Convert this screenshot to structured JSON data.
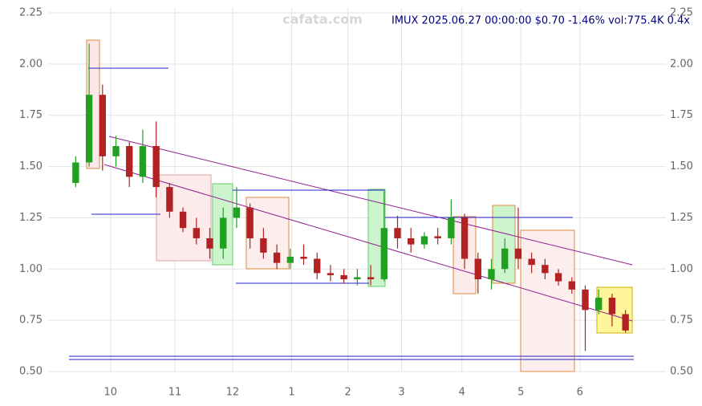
{
  "chart_data": {
    "type": "candlestick",
    "title": "IMUX 2025.06.27 00:00:00 $0.70 -1.46% vol:775.4K 0.4x",
    "watermark": "cafata.com",
    "categories": [
      null,
      null,
      null,
      null,
      null,
      null,
      null,
      null,
      null,
      null,
      null,
      null,
      null,
      null,
      null,
      null,
      null,
      null,
      null,
      null,
      null,
      null,
      null,
      null,
      null,
      null,
      null,
      null,
      null,
      null,
      null,
      null,
      null,
      null,
      null,
      null,
      null,
      null,
      null,
      null,
      null,
      null
    ],
    "open": [
      1.42,
      1.52,
      1.85,
      1.55,
      1.6,
      1.45,
      1.6,
      1.4,
      1.28,
      1.2,
      1.15,
      1.1,
      1.25,
      1.3,
      1.15,
      1.08,
      1.03,
      1.06,
      1.05,
      0.98,
      0.97,
      0.95,
      0.96,
      0.95,
      1.2,
      1.15,
      1.12,
      1.16,
      1.15,
      1.25,
      1.05,
      0.95,
      1.0,
      1.1,
      1.05,
      1.02,
      0.98,
      0.94,
      0.9,
      0.8,
      0.86,
      0.78
    ],
    "high": [
      1.55,
      2.1,
      1.9,
      1.65,
      1.62,
      1.68,
      1.72,
      1.42,
      1.3,
      1.25,
      1.2,
      1.3,
      1.4,
      1.32,
      1.2,
      1.12,
      1.1,
      1.12,
      1.08,
      1.02,
      1.0,
      1.0,
      1.02,
      1.38,
      1.26,
      1.2,
      1.18,
      1.2,
      1.34,
      1.27,
      1.08,
      1.05,
      1.15,
      1.3,
      1.08,
      1.05,
      1.0,
      0.96,
      0.92,
      0.9,
      0.88,
      0.8
    ],
    "low": [
      1.4,
      1.5,
      1.48,
      1.5,
      1.4,
      1.42,
      1.35,
      1.25,
      1.18,
      1.12,
      1.05,
      1.05,
      1.2,
      1.1,
      1.05,
      1.0,
      1.0,
      1.02,
      0.95,
      0.94,
      0.93,
      0.92,
      0.92,
      0.94,
      1.1,
      1.08,
      1.1,
      1.12,
      1.12,
      1.0,
      0.88,
      0.9,
      0.98,
      1.0,
      0.98,
      0.95,
      0.92,
      0.88,
      0.6,
      0.78,
      0.72,
      0.69
    ],
    "close": [
      1.52,
      1.85,
      1.55,
      1.6,
      1.45,
      1.6,
      1.4,
      1.28,
      1.2,
      1.15,
      1.1,
      1.25,
      1.3,
      1.15,
      1.08,
      1.03,
      1.06,
      1.05,
      0.98,
      0.97,
      0.95,
      0.96,
      0.95,
      1.2,
      1.15,
      1.12,
      1.16,
      1.15,
      1.25,
      1.05,
      0.95,
      1.0,
      1.1,
      1.05,
      1.02,
      0.98,
      0.94,
      0.9,
      0.8,
      0.86,
      0.78,
      0.7
    ],
    "up_color": "#22a022",
    "down_color": "#b22222",
    "xlim": [
      0,
      42
    ],
    "xticks": [
      {
        "value": 3.1,
        "label": "10"
      },
      {
        "value": 7.9,
        "label": "11"
      },
      {
        "value": 12.2,
        "label": "12"
      },
      {
        "value": 16.6,
        "label": "1"
      },
      {
        "value": 20.8,
        "label": "2"
      },
      {
        "value": 24.8,
        "label": "3"
      },
      {
        "value": 29.3,
        "label": "4"
      },
      {
        "value": 33.7,
        "label": "5"
      },
      {
        "value": 38.1,
        "label": "6"
      }
    ],
    "ylim": [
      0.5,
      2.25
    ],
    "yticks": [
      {
        "value": 0.5,
        "label": "0.50"
      },
      0.75,
      {
        "value": 1.0,
        "label": "1.00"
      },
      1.25,
      {
        "value": 1.5,
        "label": "1.50"
      },
      1.75,
      {
        "value": 2.0,
        "label": "2.00"
      },
      2.25
    ],
    "grid": true
  }
}
